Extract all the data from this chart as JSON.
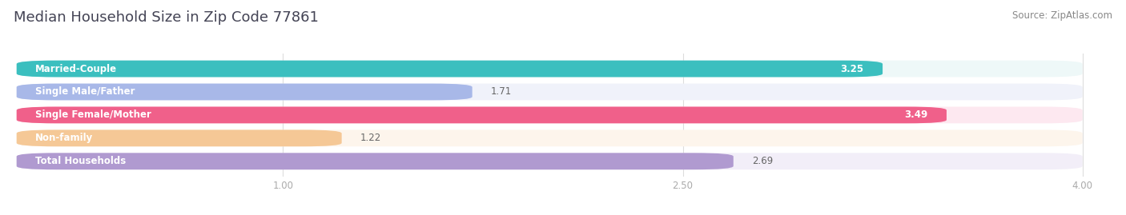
{
  "title": "Median Household Size in Zip Code 77861",
  "source": "Source: ZipAtlas.com",
  "categories": [
    "Married-Couple",
    "Single Male/Father",
    "Single Female/Mother",
    "Non-family",
    "Total Households"
  ],
  "values": [
    3.25,
    1.71,
    3.49,
    1.22,
    2.69
  ],
  "bar_colors": [
    "#3bbfbf",
    "#a8b8e8",
    "#f0608a",
    "#f5c896",
    "#b09ad0"
  ],
  "bar_bg_colors": [
    "#eef8f8",
    "#f0f2fa",
    "#fde8f0",
    "#fdf5ec",
    "#f2eef8"
  ],
  "value_inside": [
    true,
    false,
    true,
    false,
    false
  ],
  "xlim_data": [
    0,
    4.15
  ],
  "xlim_display": [
    0,
    4.0
  ],
  "xticks": [
    1.0,
    2.5,
    4.0
  ],
  "label_fontsize": 8.5,
  "value_fontsize": 8.5,
  "title_fontsize": 13,
  "source_fontsize": 8.5,
  "bg_color": "#ffffff"
}
